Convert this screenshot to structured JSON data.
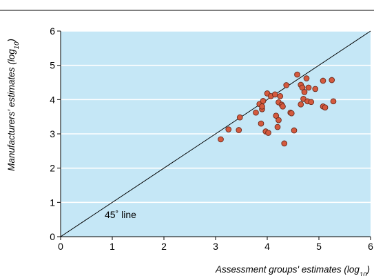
{
  "chart_data": {
    "type": "scatter",
    "xlabel": {
      "main": "Assessment groups' estimates (log",
      "sub": "10",
      "end": ")"
    },
    "ylabel": {
      "main": "Manufacturers' estimates (log",
      "sub": "10",
      "end": ")"
    },
    "xlim": [
      0,
      6
    ],
    "ylim": [
      0,
      6
    ],
    "xticks": [
      0,
      1,
      2,
      3,
      4,
      5,
      6
    ],
    "yticks": [
      0,
      1,
      2,
      3,
      4,
      5,
      6
    ],
    "grid": "horizontal",
    "reference_line": {
      "label": "45˚ line",
      "from": [
        0,
        0
      ],
      "to": [
        6,
        6
      ]
    },
    "colors": {
      "plot_bg": "#c5e7f6",
      "grid": "#ffffff",
      "point_fill": "#d45a3e",
      "point_stroke": "#6b2a1c",
      "line": "#000000"
    },
    "series": [
      {
        "points": [
          [
            3.1,
            2.84
          ],
          [
            3.25,
            3.13
          ],
          [
            3.45,
            3.11
          ],
          [
            3.47,
            3.48
          ],
          [
            3.78,
            3.62
          ],
          [
            3.85,
            3.87
          ],
          [
            3.88,
            3.3
          ],
          [
            3.9,
            3.72
          ],
          [
            3.9,
            3.8
          ],
          [
            3.92,
            3.96
          ],
          [
            3.97,
            3.07
          ],
          [
            4.0,
            4.18
          ],
          [
            4.02,
            3.03
          ],
          [
            4.07,
            4.1
          ],
          [
            4.15,
            4.15
          ],
          [
            4.17,
            3.53
          ],
          [
            4.2,
            3.2
          ],
          [
            4.22,
            3.4
          ],
          [
            4.22,
            3.92
          ],
          [
            4.25,
            4.1
          ],
          [
            4.28,
            3.85
          ],
          [
            4.3,
            3.8
          ],
          [
            4.33,
            2.72
          ],
          [
            4.37,
            4.42
          ],
          [
            4.45,
            3.62
          ],
          [
            4.47,
            3.6
          ],
          [
            4.52,
            3.1
          ],
          [
            4.58,
            4.73
          ],
          [
            4.65,
            4.43
          ],
          [
            4.65,
            3.86
          ],
          [
            4.68,
            4.35
          ],
          [
            4.7,
            4.02
          ],
          [
            4.72,
            4.22
          ],
          [
            4.76,
            4.62
          ],
          [
            4.78,
            3.95
          ],
          [
            4.8,
            4.35
          ],
          [
            4.85,
            3.93
          ],
          [
            4.93,
            4.31
          ],
          [
            5.08,
            4.55
          ],
          [
            5.08,
            3.8
          ],
          [
            5.12,
            3.77
          ],
          [
            5.25,
            4.57
          ],
          [
            5.28,
            3.95
          ]
        ]
      }
    ]
  }
}
